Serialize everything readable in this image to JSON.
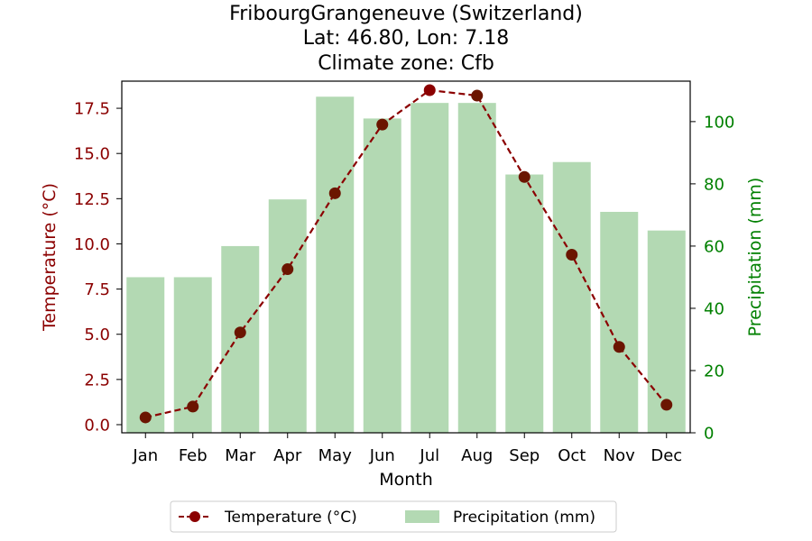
{
  "chart_data": {
    "type": "bar+line",
    "title_lines": [
      "FribourgGrangeneuve (Switzerland)",
      "Lat: 46.80, Lon: 7.18",
      "Climate zone: Cfb"
    ],
    "xlabel": "Month",
    "categories": [
      "Jan",
      "Feb",
      "Mar",
      "Apr",
      "May",
      "Jun",
      "Jul",
      "Aug",
      "Sep",
      "Oct",
      "Nov",
      "Dec"
    ],
    "left_axis": {
      "label": "Temperature (°C)",
      "ylim": [
        -0.45,
        19.0
      ],
      "ticks": [
        "0.0",
        "2.5",
        "5.0",
        "7.5",
        "10.0",
        "12.5",
        "15.0",
        "17.5"
      ],
      "color": "#8b0000"
    },
    "right_axis": {
      "label": "Precipitation (mm)",
      "ylim": [
        0,
        113
      ],
      "ticks": [
        "0",
        "20",
        "40",
        "60",
        "80",
        "100"
      ],
      "color": "#008000"
    },
    "series": [
      {
        "name": "Temperature (°C)",
        "kind": "line",
        "axis": "left",
        "color": "#8b0000",
        "marker_color": "#6b1500",
        "style": "dashed",
        "values": [
          0.4,
          1.0,
          5.1,
          8.6,
          12.8,
          16.6,
          18.5,
          18.2,
          13.7,
          9.4,
          4.3,
          1.1
        ]
      },
      {
        "name": "Precipitation (mm)",
        "kind": "bar",
        "axis": "right",
        "color": "#b3d9b3",
        "values": [
          50,
          50,
          60,
          75,
          108,
          101,
          106,
          106,
          83,
          87,
          71,
          65
        ]
      }
    ],
    "legend": {
      "placement": "bottom-center"
    },
    "grid": false
  }
}
